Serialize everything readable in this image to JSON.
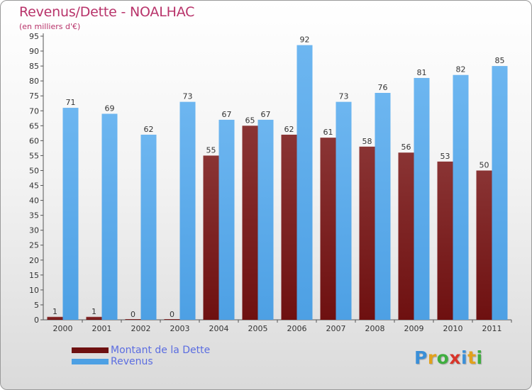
{
  "title": "Revenus/Dette - NOALHAC",
  "subtitle": "(en milliers d'€)",
  "colors": {
    "title": "#b8336a",
    "debt": "#6e1010",
    "debt_light": "#8a3434",
    "revenue": "#4da0e4",
    "revenue_light": "#6db6f0",
    "legend_text": "#5b6de0"
  },
  "logo": {
    "letters": [
      {
        "ch": "P",
        "color": "#3a8fd8"
      },
      {
        "ch": "r",
        "color": "#e2a11c"
      },
      {
        "ch": "o",
        "color": "#3fae3f"
      },
      {
        "ch": "x",
        "color": "#d8352a"
      },
      {
        "ch": "i",
        "color": "#3a8fd8"
      },
      {
        "ch": "t",
        "color": "#e2a11c"
      },
      {
        "ch": "i",
        "color": "#3fae3f"
      }
    ]
  },
  "legend": {
    "debt_label": "Montant de la Dette",
    "revenue_label": "Revenus"
  },
  "chart_data": {
    "type": "bar",
    "categories": [
      "2000",
      "2001",
      "2002",
      "2003",
      "2004",
      "2005",
      "2006",
      "2007",
      "2008",
      "2009",
      "2010",
      "2011"
    ],
    "series": [
      {
        "name": "Montant de la Dette",
        "values": [
          1,
          1,
          0,
          0,
          55,
          65,
          62,
          61,
          58,
          56,
          53,
          50
        ]
      },
      {
        "name": "Revenus",
        "values": [
          71,
          69,
          62,
          73,
          67,
          67,
          92,
          73,
          76,
          81,
          82,
          85
        ]
      }
    ],
    "ylim": [
      0,
      95
    ],
    "ytick_step": 5,
    "grid": false,
    "legend_position": "bottom-left"
  }
}
